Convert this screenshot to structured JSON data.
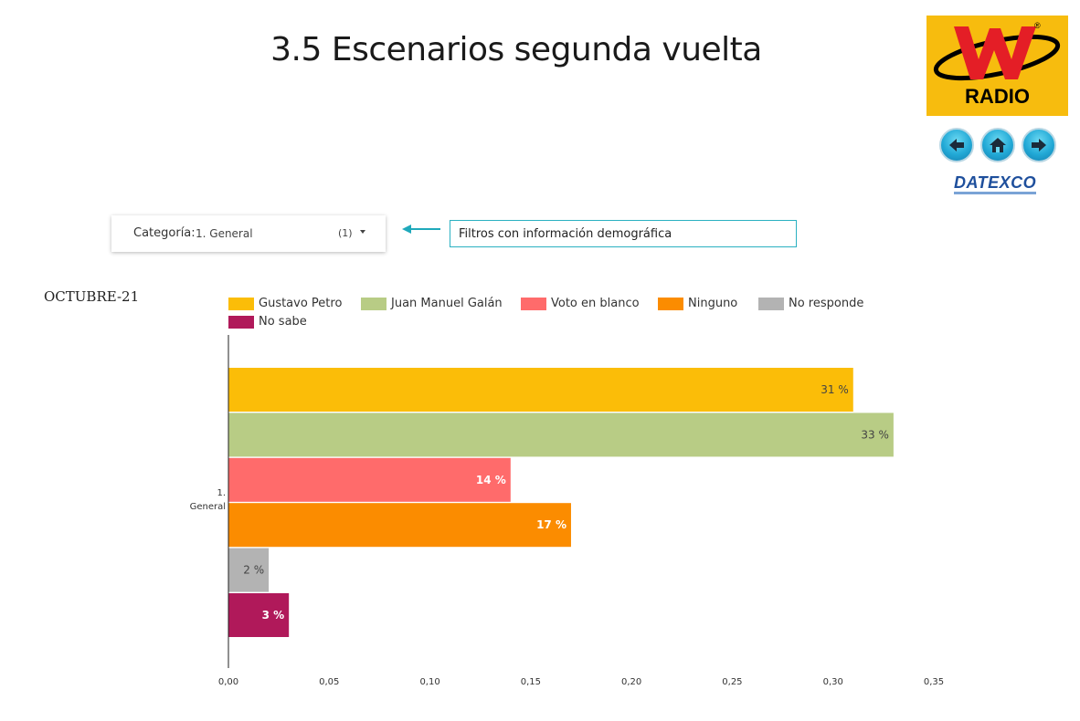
{
  "page": {
    "title": "3.5 Escenarios segunda vuelta",
    "period": "OCTUBRE-21"
  },
  "logo": {
    "brand_letter": "W",
    "brand_word": "RADIO",
    "partner": "DATEXCO",
    "background_color": "#f7bc0e"
  },
  "nav": {
    "back_icon": "arrow-left-icon",
    "home_icon": "home-icon",
    "next_icon": "arrow-right-icon"
  },
  "filter": {
    "label": "Categoría:",
    "value": "1. General",
    "count": "(1)"
  },
  "note": {
    "text": "Filtros con información demográfica"
  },
  "chart_data": {
    "type": "bar",
    "orientation": "horizontal",
    "categories": [
      "1. General"
    ],
    "series": [
      {
        "name": "Gustavo Petro",
        "values": [
          0.31
        ],
        "label": "31 %",
        "color": "#fbbd08"
      },
      {
        "name": "Juan Manuel Galán",
        "values": [
          0.33
        ],
        "label": "33 %",
        "color": "#b8cc85"
      },
      {
        "name": "Voto en blanco",
        "values": [
          0.14
        ],
        "label": "14 %",
        "color": "#ff6b6b"
      },
      {
        "name": "Ninguno",
        "values": [
          0.17
        ],
        "label": "17 %",
        "color": "#fb8c00"
      },
      {
        "name": "No responde",
        "values": [
          0.02
        ],
        "label": "2 %",
        "color": "#b3b3b3"
      },
      {
        "name": "No sabe",
        "values": [
          0.03
        ],
        "label": "3 %",
        "color": "#b0195a"
      }
    ],
    "xlim": [
      0,
      0.35
    ],
    "xticks": [
      "0,00",
      "0,05",
      "0,10",
      "0,15",
      "0,20",
      "0,25",
      "0,30",
      "0,35"
    ],
    "grid": false,
    "legend_position": "top"
  }
}
